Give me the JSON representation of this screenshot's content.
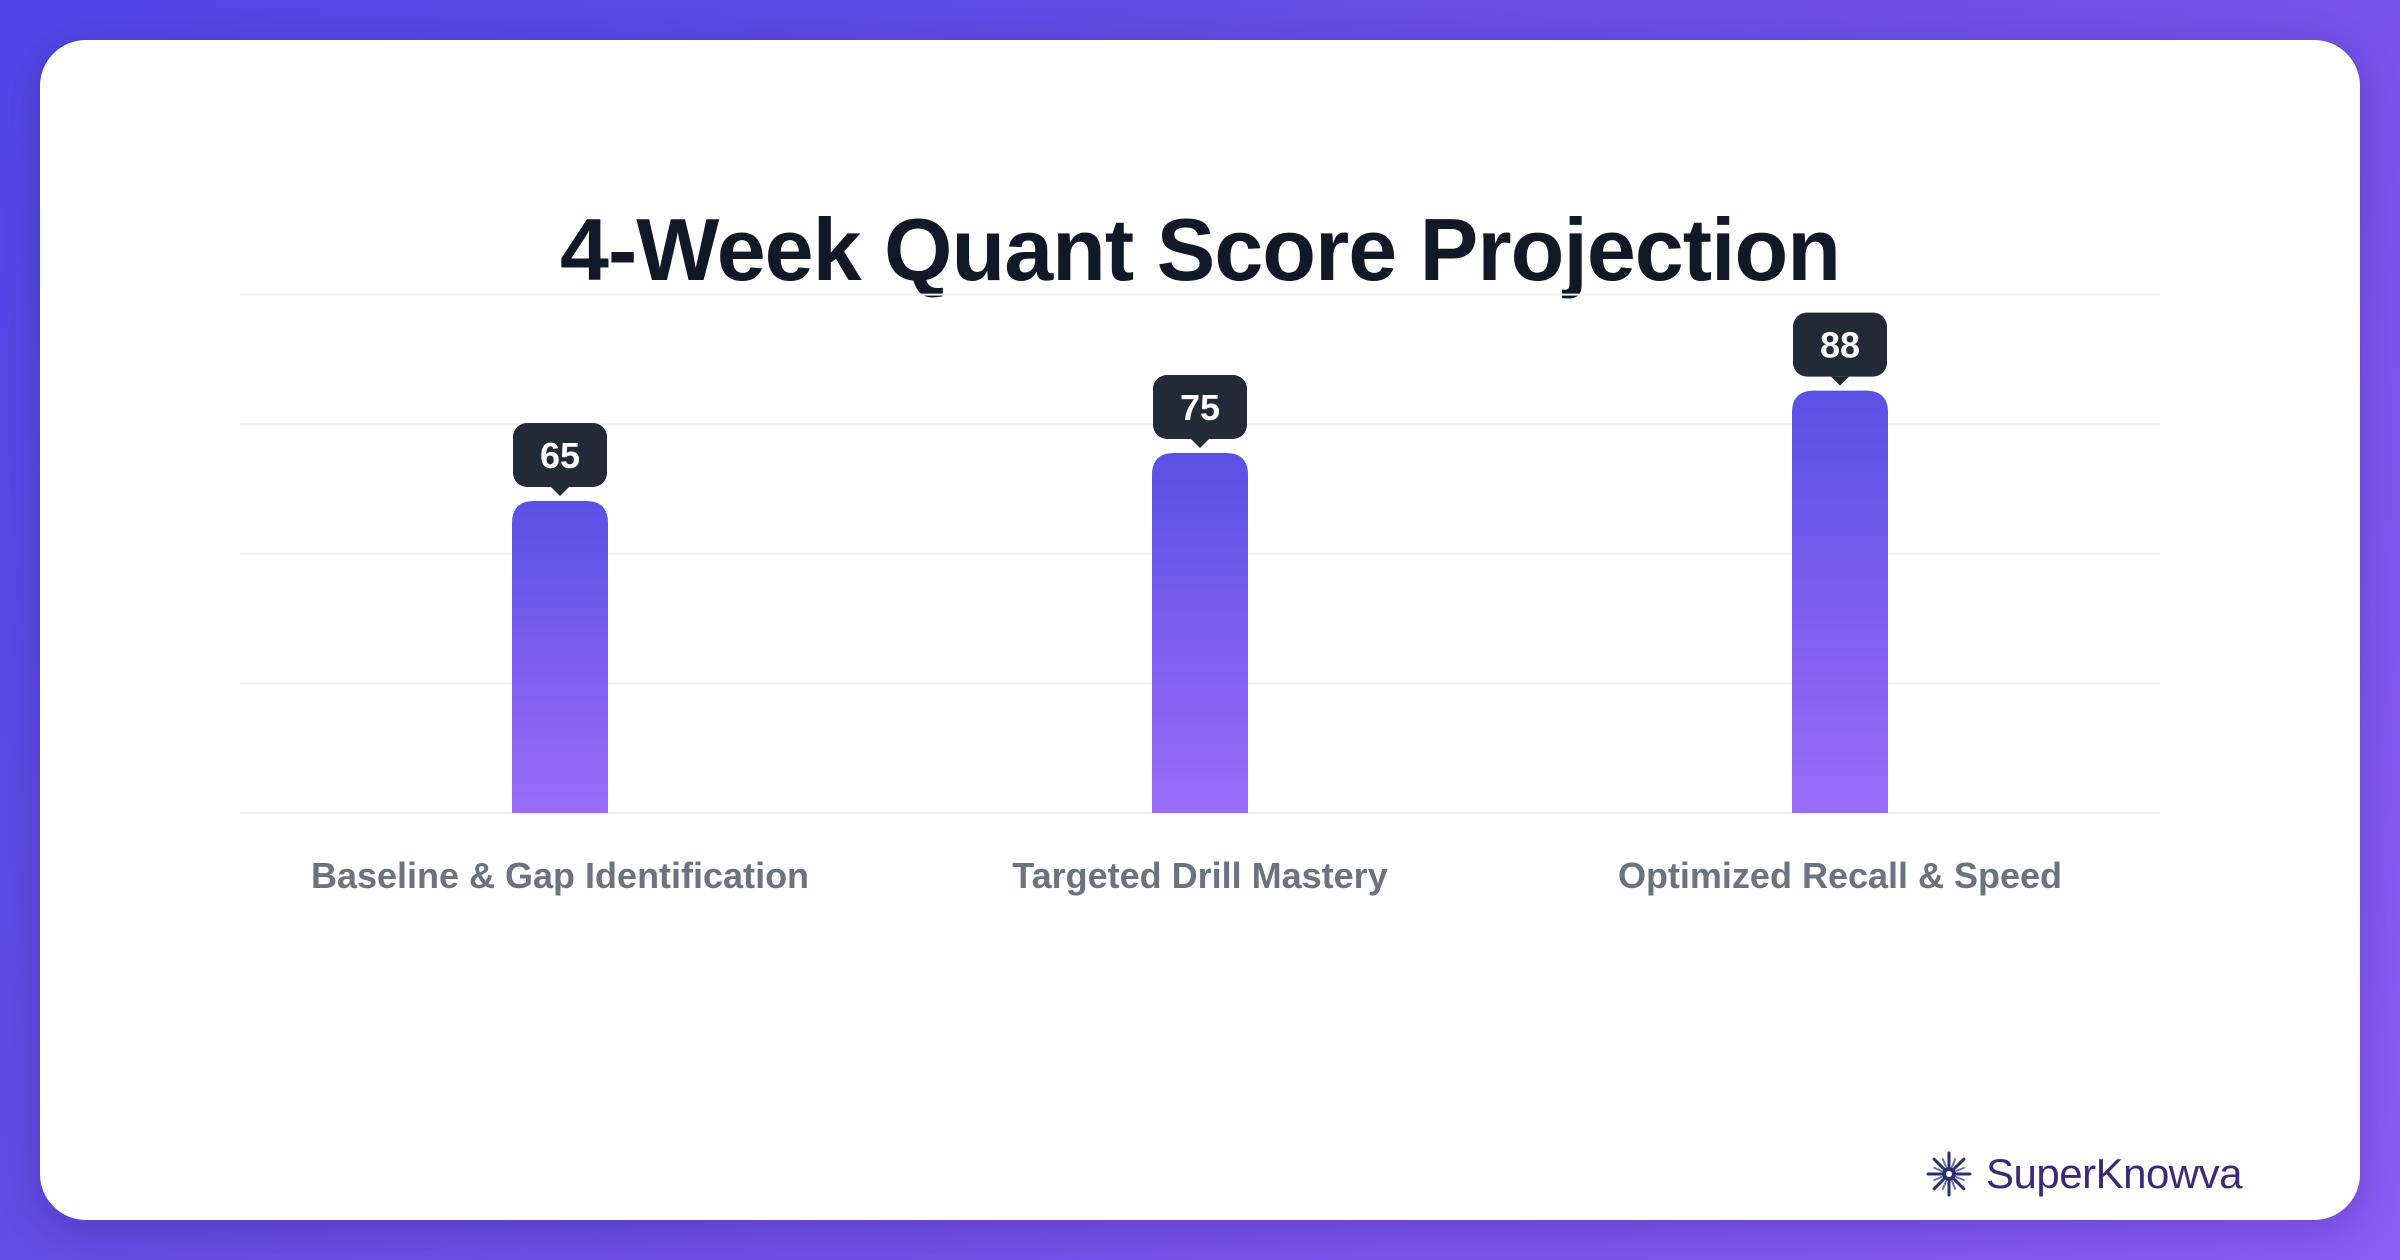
{
  "title": "4-Week Quant Score Projection",
  "brand": {
    "name": "SuperKnowva",
    "icon": "starburst-logo-icon"
  },
  "colors": {
    "background_start": "#4f46e5",
    "background_end": "#8b5cf6",
    "bar_top": "#5b50e6",
    "bar_bottom": "#9a6cf8",
    "value_badge": "#232a37",
    "title_text": "#111827",
    "axis_label_text": "#6b7280",
    "brand_text": "#3b2a7a"
  },
  "chart_data": {
    "type": "bar",
    "title": "4-Week Quant Score Projection",
    "categories": [
      "Baseline & Gap Identification",
      "Targeted Drill Mastery",
      "Optimized Recall & Speed"
    ],
    "values": [
      65,
      75,
      88
    ],
    "value_labels": [
      "65",
      "75",
      "88"
    ],
    "xlabel": "",
    "ylabel": "",
    "ylim": [
      0,
      108
    ],
    "grid": true,
    "legend": "none"
  }
}
